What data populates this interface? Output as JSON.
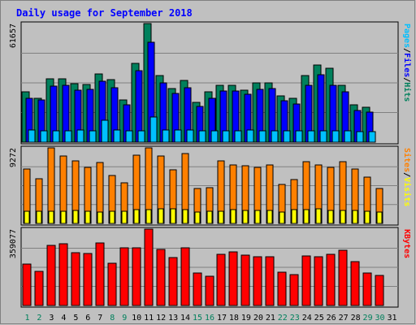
{
  "title": "Daily usage for September 2018",
  "colors": {
    "background": "#c0c0c0",
    "panel": "#c0c0c0",
    "grid": "#808080",
    "title": "#0000ff",
    "hits": "#00805c",
    "files": "#0000ff",
    "pages": "#00c0ff",
    "visits": "#ffff00",
    "sites": "#ff8000",
    "kbytes": "#ff0000",
    "day_normal": "#000000",
    "day_weekend": "#00805c"
  },
  "chart_data": [
    {
      "type": "bar",
      "name": "hits-files-pages",
      "ymax_label": "61657",
      "ylim": [
        0,
        61657
      ],
      "axis_labels": [
        {
          "text": "Pages",
          "color": "#00c0ff"
        },
        {
          "text": "/",
          "color": "#000000"
        },
        {
          "text": "Files",
          "color": "#0000ff"
        },
        {
          "text": "/",
          "color": "#000000"
        },
        {
          "text": "Hits",
          "color": "#00805c"
        }
      ],
      "series": [
        {
          "name": "Hits",
          "color": "#00805c",
          "values": [
            26000,
            22700,
            33000,
            33000,
            30500,
            30000,
            35500,
            32500,
            22000,
            41000,
            61657,
            34500,
            28000,
            32000,
            20500,
            26000,
            29500,
            29500,
            27000,
            31000,
            31000,
            24000,
            22700,
            34500,
            40000,
            38500,
            29500,
            19500,
            18000,
            0
          ]
        },
        {
          "name": "Files",
          "color": "#0000ff",
          "values": [
            23000,
            22000,
            29000,
            29500,
            27000,
            27500,
            31500,
            28500,
            19500,
            37000,
            52000,
            31000,
            25500,
            28500,
            18500,
            23000,
            26500,
            26500,
            25000,
            27500,
            28000,
            21500,
            20000,
            29500,
            35000,
            29500,
            26000,
            16500,
            15500,
            0
          ]
        },
        {
          "name": "Pages",
          "color": "#00c0ff",
          "values": [
            6300,
            5900,
            5900,
            6100,
            6300,
            6000,
            11500,
            6200,
            6000,
            6100,
            13000,
            6400,
            6300,
            6300,
            6000,
            5900,
            5900,
            6100,
            6300,
            6100,
            6000,
            5800,
            5800,
            5900,
            6100,
            5900,
            6000,
            5700,
            5600,
            0
          ]
        }
      ]
    },
    {
      "type": "bar",
      "name": "sites-visits",
      "ymax_label": "9272",
      "ylim": [
        0,
        9272
      ],
      "axis_labels": [
        {
          "text": "Sites",
          "color": "#ff8000"
        },
        {
          "text": "/",
          "color": "#000000"
        },
        {
          "text": "Visits",
          "color": "#ffff00"
        }
      ],
      "series": [
        {
          "name": "Sites",
          "color": "#ff8000",
          "values": [
            6700,
            5500,
            9272,
            8300,
            7700,
            6900,
            7500,
            5900,
            5000,
            8400,
            9272,
            8300,
            6600,
            8600,
            4300,
            4400,
            7700,
            7200,
            7100,
            6900,
            7200,
            4800,
            5400,
            7600,
            7200,
            6900,
            7600,
            6700,
            5700,
            4300
          ]
        },
        {
          "name": "Visits",
          "color": "#ffff00",
          "values": [
            1500,
            1500,
            1500,
            1500,
            1600,
            1500,
            1400,
            1500,
            1500,
            1700,
            1700,
            1800,
            1800,
            1700,
            1400,
            1500,
            1500,
            1700,
            1600,
            1600,
            1600,
            1400,
            1700,
            1700,
            1800,
            1600,
            1600,
            1600,
            1500,
            1400
          ]
        }
      ]
    },
    {
      "type": "bar",
      "name": "kbytes",
      "ymax_label": "359077",
      "ylim": [
        0,
        359077
      ],
      "axis_labels": [
        {
          "text": "KBytes",
          "color": "#ff0000"
        }
      ],
      "series": [
        {
          "name": "KBytes",
          "color": "#ff0000",
          "values": [
            196000,
            160000,
            281000,
            291000,
            248000,
            245000,
            293000,
            199000,
            273000,
            270000,
            359077,
            265000,
            226000,
            270000,
            153000,
            137000,
            241000,
            251000,
            236000,
            229000,
            231000,
            155000,
            146000,
            233000,
            230000,
            242000,
            258000,
            206000,
            153000,
            140000
          ]
        }
      ]
    }
  ],
  "days": [
    {
      "label": "1",
      "weekend": true
    },
    {
      "label": "2",
      "weekend": true
    },
    {
      "label": "3",
      "weekend": false
    },
    {
      "label": "4",
      "weekend": false
    },
    {
      "label": "5",
      "weekend": false
    },
    {
      "label": "6",
      "weekend": false
    },
    {
      "label": "7",
      "weekend": false
    },
    {
      "label": "8",
      "weekend": true
    },
    {
      "label": "9",
      "weekend": true
    },
    {
      "label": "10",
      "weekend": false
    },
    {
      "label": "11",
      "weekend": false
    },
    {
      "label": "12",
      "weekend": false
    },
    {
      "label": "13",
      "weekend": false
    },
    {
      "label": "14",
      "weekend": false
    },
    {
      "label": "15",
      "weekend": true
    },
    {
      "label": "16",
      "weekend": true
    },
    {
      "label": "17",
      "weekend": false
    },
    {
      "label": "18",
      "weekend": false
    },
    {
      "label": "19",
      "weekend": false
    },
    {
      "label": "20",
      "weekend": false
    },
    {
      "label": "21",
      "weekend": false
    },
    {
      "label": "22",
      "weekend": true
    },
    {
      "label": "23",
      "weekend": true
    },
    {
      "label": "24",
      "weekend": false
    },
    {
      "label": "25",
      "weekend": false
    },
    {
      "label": "26",
      "weekend": false
    },
    {
      "label": "27",
      "weekend": false
    },
    {
      "label": "28",
      "weekend": false
    },
    {
      "label": "29",
      "weekend": true
    },
    {
      "label": "30",
      "weekend": true
    },
    {
      "label": "31",
      "weekend": false
    }
  ]
}
